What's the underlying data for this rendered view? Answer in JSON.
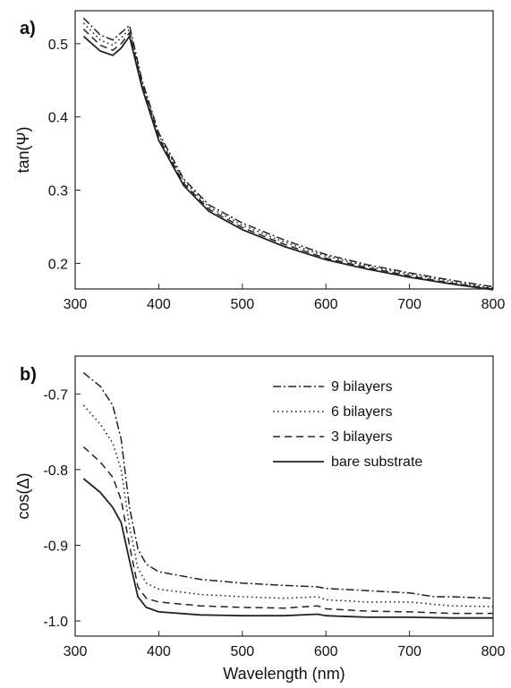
{
  "chart_data": [
    {
      "panel_label": "a)",
      "type": "line",
      "title": "",
      "xlabel": "",
      "ylabel": "tan(Ψ)",
      "xlim": [
        300,
        800
      ],
      "ylim": [
        0.165,
        0.545
      ],
      "xticks": [
        "300",
        "400",
        "500",
        "600",
        "700",
        "800"
      ],
      "yticks": [
        "0.2",
        "0.3",
        "0.4",
        "0.5"
      ],
      "grid": false,
      "legend": "none",
      "series": [
        {
          "style": "dashdot",
          "x": [
            310,
            330,
            345,
            355,
            365,
            380,
            400,
            430,
            460,
            500,
            550,
            600,
            650,
            700,
            750,
            800
          ],
          "y": [
            0.535,
            0.512,
            0.505,
            0.515,
            0.525,
            0.45,
            0.378,
            0.315,
            0.28,
            0.255,
            0.232,
            0.212,
            0.198,
            0.187,
            0.177,
            0.168
          ]
        },
        {
          "style": "dotted",
          "x": [
            310,
            330,
            345,
            355,
            365,
            380,
            400,
            430,
            460,
            500,
            550,
            600,
            650,
            700,
            750,
            800
          ],
          "y": [
            0.528,
            0.505,
            0.498,
            0.508,
            0.52,
            0.447,
            0.375,
            0.312,
            0.277,
            0.252,
            0.229,
            0.21,
            0.196,
            0.185,
            0.175,
            0.166
          ]
        },
        {
          "style": "dashed",
          "x": [
            310,
            330,
            345,
            355,
            365,
            380,
            400,
            430,
            460,
            500,
            550,
            600,
            650,
            700,
            750,
            800
          ],
          "y": [
            0.52,
            0.498,
            0.491,
            0.5,
            0.515,
            0.444,
            0.372,
            0.309,
            0.274,
            0.249,
            0.226,
            0.207,
            0.194,
            0.183,
            0.173,
            0.165
          ]
        },
        {
          "style": "solid",
          "x": [
            310,
            330,
            345,
            355,
            365,
            380,
            400,
            430,
            460,
            500,
            550,
            600,
            650,
            700,
            750,
            800
          ],
          "y": [
            0.51,
            0.49,
            0.484,
            0.494,
            0.51,
            0.44,
            0.368,
            0.306,
            0.271,
            0.246,
            0.223,
            0.205,
            0.192,
            0.181,
            0.172,
            0.164
          ]
        }
      ]
    },
    {
      "panel_label": "b)",
      "type": "line",
      "title": "",
      "xlabel": "Wavelength (nm)",
      "ylabel": "cos(Δ)",
      "xlim": [
        300,
        800
      ],
      "ylim": [
        -1.02,
        -0.65
      ],
      "xticks": [
        "300",
        "400",
        "500",
        "600",
        "700",
        "800"
      ],
      "yticks": [
        "-0.7",
        "-0.8",
        "-0.9",
        "-1.0"
      ],
      "grid": false,
      "legend": "top-right",
      "series": [
        {
          "name": "9 bilayers",
          "style": "dashdot",
          "x": [
            310,
            330,
            345,
            355,
            365,
            375,
            385,
            400,
            450,
            500,
            550,
            590,
            600,
            650,
            700,
            730,
            750,
            800
          ],
          "y": [
            -0.672,
            -0.69,
            -0.715,
            -0.76,
            -0.85,
            -0.905,
            -0.925,
            -0.935,
            -0.945,
            -0.95,
            -0.953,
            -0.955,
            -0.957,
            -0.96,
            -0.963,
            -0.968,
            -0.968,
            -0.97
          ]
        },
        {
          "name": "6 bilayers",
          "style": "dotted",
          "x": [
            310,
            330,
            345,
            355,
            365,
            375,
            385,
            400,
            450,
            500,
            550,
            590,
            600,
            650,
            700,
            730,
            750,
            800
          ],
          "y": [
            -0.715,
            -0.74,
            -0.765,
            -0.8,
            -0.875,
            -0.93,
            -0.95,
            -0.958,
            -0.965,
            -0.968,
            -0.97,
            -0.968,
            -0.972,
            -0.975,
            -0.975,
            -0.978,
            -0.98,
            -0.981
          ]
        },
        {
          "name": "3 bilayers",
          "style": "dashed",
          "x": [
            310,
            330,
            345,
            355,
            365,
            375,
            385,
            400,
            450,
            500,
            550,
            590,
            600,
            650,
            700,
            750,
            800
          ],
          "y": [
            -0.77,
            -0.79,
            -0.81,
            -0.84,
            -0.9,
            -0.955,
            -0.97,
            -0.975,
            -0.98,
            -0.982,
            -0.983,
            -0.98,
            -0.984,
            -0.987,
            -0.988,
            -0.99,
            -0.99
          ]
        },
        {
          "name": "bare substrate",
          "style": "solid",
          "x": [
            310,
            330,
            345,
            355,
            365,
            375,
            385,
            400,
            450,
            500,
            550,
            590,
            600,
            650,
            700,
            750,
            800
          ],
          "y": [
            -0.812,
            -0.83,
            -0.85,
            -0.87,
            -0.92,
            -0.968,
            -0.982,
            -0.988,
            -0.992,
            -0.993,
            -0.993,
            -0.991,
            -0.993,
            -0.995,
            -0.995,
            -0.996,
            -0.996
          ]
        }
      ]
    }
  ]
}
